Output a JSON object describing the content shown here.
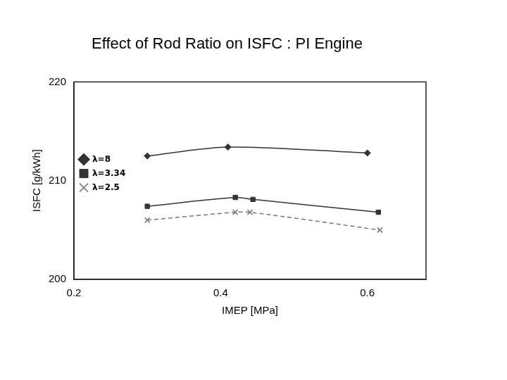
{
  "chart_data": {
    "type": "line",
    "title": "Effect of Rod Ratio on ISFC : PI Engine",
    "x_label": "IMEP [MPa]",
    "y_label": "ISFC [g/kWh]",
    "xlim": [
      0.2,
      0.68
    ],
    "xticks": [
      0.2,
      0.4,
      0.6
    ],
    "ylim": [
      200,
      220
    ],
    "yticks": [
      200,
      210,
      220
    ],
    "grid": false,
    "legend": "top right",
    "series": [
      {
        "name": "λ=8",
        "color": "#333333",
        "marker": "diamond",
        "line_style": "solid",
        "x": [
          0.3,
          0.41,
          0.6
        ],
        "values": [
          212.5,
          213.4,
          212.8
        ]
      },
      {
        "name": "λ=3.34",
        "color": "#333333",
        "marker": "square",
        "line_style": "solid",
        "x": [
          0.3,
          0.42,
          0.444,
          0.615
        ],
        "values": [
          207.4,
          208.3,
          208.1,
          206.8
        ]
      },
      {
        "name": "λ=2.5",
        "color": "#777777",
        "marker": "x",
        "line_style": "dashed",
        "x": [
          0.3,
          0.42,
          0.44,
          0.617
        ],
        "values": [
          206.0,
          206.8,
          206.8,
          205.0
        ]
      }
    ]
  }
}
